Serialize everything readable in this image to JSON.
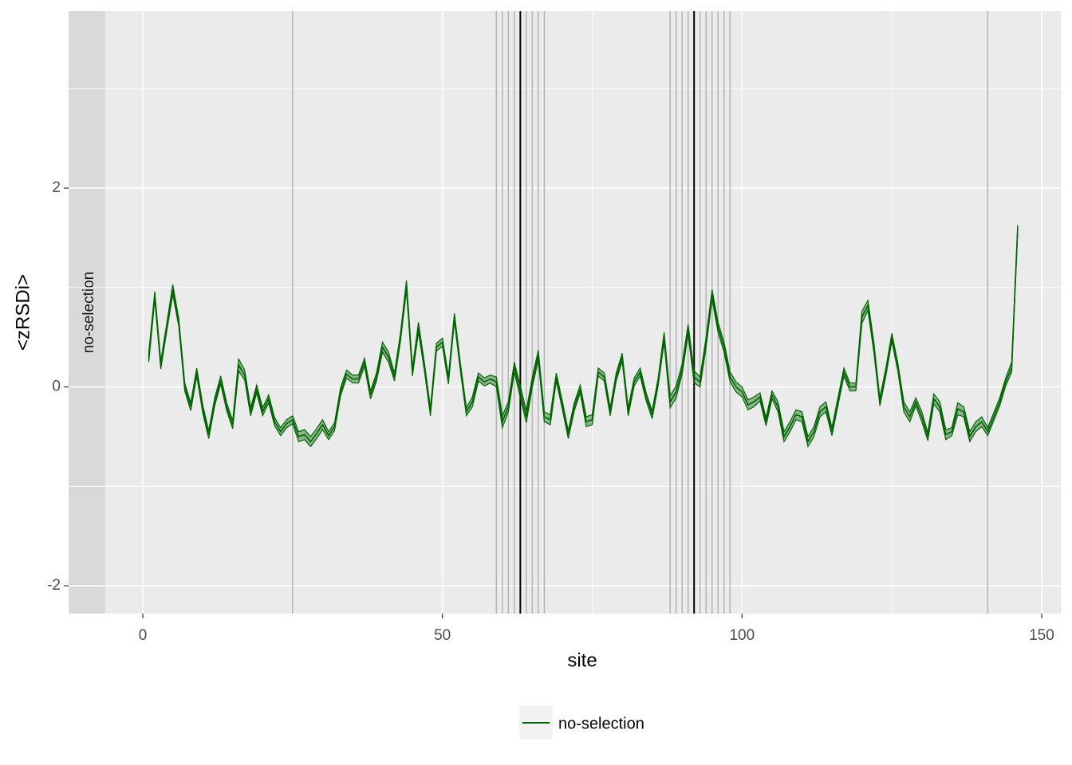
{
  "chart_data": {
    "type": "line",
    "xlabel": "site",
    "ylabel": "<zRSDi>",
    "strip_label": "no-selection",
    "xlim": [
      -6.26,
      153.2
    ],
    "ylim": [
      -2.28,
      3.78
    ],
    "xticks": [
      0,
      50,
      100,
      150
    ],
    "yticks": [
      -2,
      0,
      2
    ],
    "minor_xticks": [
      25,
      75,
      125
    ],
    "minor_yticks": [
      -1,
      1,
      3
    ],
    "grid": true,
    "legend": "bottom",
    "marked_sites": [
      25,
      59,
      60,
      61,
      62,
      64,
      65,
      66,
      67,
      88,
      89,
      90,
      91,
      93,
      94,
      95,
      96,
      97,
      98,
      141
    ],
    "marked_color": "#b3b3b3",
    "key_sites": [
      63,
      92
    ],
    "key_color": "#000000",
    "series": [
      {
        "name": "no-selection",
        "color": "#006400",
        "x": [
          1,
          2,
          3,
          4,
          5,
          6,
          7,
          8,
          9,
          10,
          11,
          12,
          13,
          14,
          15,
          16,
          17,
          18,
          19,
          20,
          21,
          22,
          23,
          24,
          25,
          26,
          27,
          28,
          29,
          30,
          31,
          32,
          33,
          34,
          35,
          36,
          37,
          38,
          39,
          40,
          41,
          42,
          43,
          44,
          45,
          46,
          47,
          48,
          49,
          50,
          51,
          52,
          53,
          54,
          55,
          56,
          57,
          58,
          59,
          60,
          61,
          62,
          63,
          64,
          65,
          66,
          67,
          68,
          69,
          70,
          71,
          72,
          73,
          74,
          75,
          76,
          77,
          78,
          79,
          80,
          81,
          82,
          83,
          84,
          85,
          86,
          87,
          88,
          89,
          90,
          91,
          92,
          93,
          94,
          95,
          96,
          97,
          98,
          99,
          100,
          101,
          102,
          103,
          104,
          105,
          106,
          107,
          108,
          109,
          110,
          111,
          112,
          113,
          114,
          115,
          116,
          117,
          118,
          119,
          120,
          121,
          122,
          123,
          124,
          125,
          126,
          127,
          128,
          129,
          130,
          131,
          132,
          133,
          134,
          135,
          136,
          137,
          138,
          139,
          140,
          141,
          142,
          143,
          144,
          145,
          146
        ],
        "values": [
          0.3,
          0.92,
          0.22,
          0.6,
          0.98,
          0.65,
          0.0,
          -0.2,
          0.15,
          -0.22,
          -0.48,
          -0.15,
          0.07,
          -0.2,
          -0.38,
          0.22,
          0.12,
          -0.25,
          -0.02,
          -0.25,
          -0.12,
          -0.35,
          -0.45,
          -0.37,
          -0.33,
          -0.5,
          -0.48,
          -0.55,
          -0.47,
          -0.38,
          -0.49,
          -0.4,
          -0.05,
          0.13,
          0.08,
          0.08,
          0.25,
          -0.08,
          0.1,
          0.4,
          0.3,
          0.1,
          0.5,
          1.02,
          0.15,
          0.6,
          0.2,
          -0.25,
          0.4,
          0.45,
          0.07,
          0.7,
          0.2,
          -0.25,
          -0.15,
          0.1,
          0.05,
          0.08,
          0.05,
          -0.35,
          -0.2,
          0.2,
          -0.05,
          -0.3,
          0.05,
          0.32,
          -0.3,
          -0.33,
          0.1,
          -0.18,
          -0.48,
          -0.2,
          -0.02,
          -0.35,
          -0.33,
          0.15,
          0.1,
          -0.25,
          0.1,
          0.3,
          -0.25,
          0.05,
          0.15,
          -0.1,
          -0.28,
          0.05,
          0.5,
          -0.15,
          -0.05,
          0.18,
          0.58,
          0.1,
          0.05,
          0.45,
          0.93,
          0.6,
          0.4,
          0.1,
          0.0,
          -0.05,
          -0.18,
          -0.15,
          -0.1,
          -0.35,
          -0.08,
          -0.2,
          -0.5,
          -0.4,
          -0.28,
          -0.3,
          -0.55,
          -0.45,
          -0.25,
          -0.2,
          -0.45,
          -0.15,
          0.15,
          0.0,
          0.0,
          0.7,
          0.82,
          0.4,
          -0.15,
          0.15,
          0.5,
          0.2,
          -0.2,
          -0.3,
          -0.15,
          -0.3,
          -0.5,
          -0.12,
          -0.2,
          -0.48,
          -0.45,
          -0.22,
          -0.25,
          -0.5,
          -0.4,
          -0.35,
          -0.45,
          -0.3,
          -0.15,
          0.05,
          0.2,
          1.6
        ],
        "errors": [
          0.05,
          0.04,
          0.04,
          0.04,
          0.05,
          0.04,
          0.04,
          0.04,
          0.04,
          0.04,
          0.04,
          0.04,
          0.04,
          0.04,
          0.04,
          0.06,
          0.05,
          0.04,
          0.04,
          0.04,
          0.04,
          0.04,
          0.04,
          0.04,
          0.04,
          0.05,
          0.05,
          0.05,
          0.05,
          0.05,
          0.04,
          0.04,
          0.04,
          0.04,
          0.04,
          0.04,
          0.04,
          0.04,
          0.04,
          0.05,
          0.05,
          0.04,
          0.04,
          0.05,
          0.04,
          0.05,
          0.04,
          0.04,
          0.04,
          0.04,
          0.04,
          0.04,
          0.04,
          0.04,
          0.05,
          0.04,
          0.04,
          0.04,
          0.05,
          0.06,
          0.05,
          0.05,
          0.06,
          0.06,
          0.05,
          0.05,
          0.05,
          0.05,
          0.04,
          0.04,
          0.04,
          0.04,
          0.04,
          0.05,
          0.05,
          0.04,
          0.04,
          0.04,
          0.04,
          0.04,
          0.04,
          0.04,
          0.04,
          0.04,
          0.04,
          0.04,
          0.05,
          0.06,
          0.06,
          0.05,
          0.05,
          0.06,
          0.05,
          0.05,
          0.05,
          0.05,
          0.05,
          0.05,
          0.05,
          0.05,
          0.05,
          0.05,
          0.04,
          0.04,
          0.04,
          0.05,
          0.05,
          0.05,
          0.05,
          0.05,
          0.05,
          0.05,
          0.05,
          0.05,
          0.04,
          0.04,
          0.04,
          0.04,
          0.04,
          0.06,
          0.05,
          0.05,
          0.04,
          0.04,
          0.04,
          0.04,
          0.05,
          0.05,
          0.04,
          0.05,
          0.04,
          0.05,
          0.05,
          0.05,
          0.04,
          0.06,
          0.05,
          0.05,
          0.05,
          0.05,
          0.04,
          0.04,
          0.04,
          0.04,
          0.05,
          0.03
        ]
      }
    ]
  }
}
